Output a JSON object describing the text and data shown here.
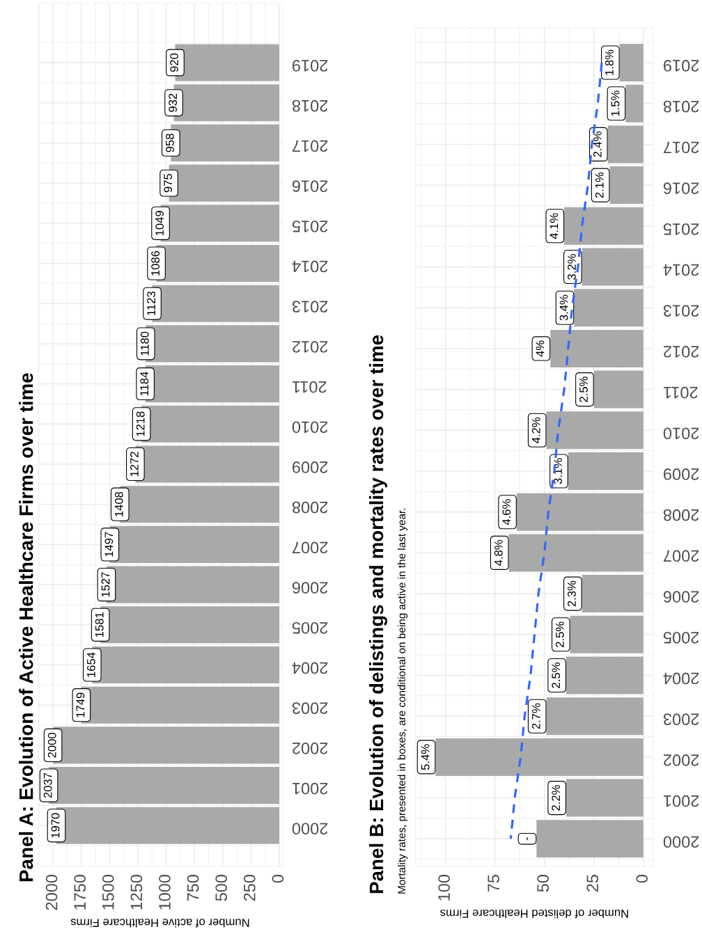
{
  "chart_data": [
    {
      "type": "bar",
      "orientation": "horizontal",
      "title": "Panel A: Evolution of Active Healthcare Firms over time",
      "xlabel": "Number of active Healthcare Firms",
      "categories": [
        "2019",
        "2018",
        "2017",
        "2016",
        "2015",
        "2014",
        "2013",
        "2012",
        "2011",
        "2010",
        "2009",
        "2008",
        "2007",
        "2006",
        "2005",
        "2004",
        "2003",
        "2002",
        "2001",
        "2000"
      ],
      "values": [
        920,
        932,
        958,
        975,
        1049,
        1086,
        1123,
        1180,
        1184,
        1218,
        1272,
        1408,
        1497,
        1527,
        1581,
        1654,
        1749,
        2000,
        2037,
        1970
      ],
      "color": "#a9a9a9",
      "xlim": [
        2130,
        -25
      ],
      "xticks": [
        0,
        250,
        500,
        750,
        1000,
        1250,
        1500,
        1750,
        2000
      ],
      "data_labels": true,
      "grid": true
    },
    {
      "type": "bar",
      "orientation": "horizontal",
      "title": "Panel B: Evolution of delistings and mortality rates over time",
      "subtitle": "Mortality rates, presented in boxes, are conditional on being active in the last year.",
      "xlabel": "Number of delisted Healthcare Firms",
      "categories": [
        "2019",
        "2018",
        "2017",
        "2016",
        "2015",
        "2014",
        "2013",
        "2012",
        "2011",
        "2010",
        "2009",
        "2008",
        "2007",
        "2006",
        "2005",
        "2004",
        "2003",
        "2002",
        "2001",
        "2000"
      ],
      "series": [
        {
          "type": "bar",
          "color": "#a9a9a9",
          "values": [
            12,
            9,
            18,
            17,
            40,
            31,
            35,
            47,
            25,
            49,
            38,
            64,
            68,
            31,
            37,
            39,
            49,
            105,
            39,
            54
          ]
        },
        {
          "type": "line",
          "values": [
            21,
            23,
            26,
            28,
            31,
            33,
            36,
            38,
            40,
            43,
            45,
            48,
            50,
            53,
            55,
            57,
            60,
            62,
            65,
            67
          ],
          "color": "#3366ff",
          "line_style": "dashed"
        }
      ],
      "annotations": [
        {
          "text": "1.8%",
          "x": 12,
          "y": "2019"
        },
        {
          "text": "1.5%",
          "x": 9,
          "y": "2018"
        },
        {
          "text": "2.4%",
          "x": 18,
          "y": "2017"
        },
        {
          "text": "2.1%",
          "x": 17,
          "y": "2016"
        },
        {
          "text": "4.1%",
          "x": 40,
          "y": "2015"
        },
        {
          "text": "3.2%",
          "x": 31,
          "y": "2014"
        },
        {
          "text": "3.4%",
          "x": 35,
          "y": "2013"
        },
        {
          "text": "4%",
          "x": 47,
          "y": "2012"
        },
        {
          "text": "2.5%",
          "x": 25,
          "y": "2011"
        },
        {
          "text": "4.2%",
          "x": 49,
          "y": "2010"
        },
        {
          "text": "3.1%",
          "x": 38,
          "y": "2009"
        },
        {
          "text": "4.6%",
          "x": 64,
          "y": "2008"
        },
        {
          "text": "4.8%",
          "x": 68,
          "y": "2007"
        },
        {
          "text": "2.3%",
          "x": 31,
          "y": "2006"
        },
        {
          "text": "2.5%",
          "x": 37,
          "y": "2005"
        },
        {
          "text": "2.5%",
          "x": 39,
          "y": "2004"
        },
        {
          "text": "2.7%",
          "x": 49,
          "y": "2003"
        },
        {
          "text": "5.4%",
          "x": 105,
          "y": "2002"
        },
        {
          "text": "2.2%",
          "x": 39,
          "y": "2001"
        },
        {
          "text": "-",
          "x": 54,
          "y": "2000"
        }
      ],
      "xlim": [
        115,
        -5
      ],
      "xticks": [
        0,
        25,
        50,
        75,
        100
      ],
      "grid": true
    }
  ]
}
